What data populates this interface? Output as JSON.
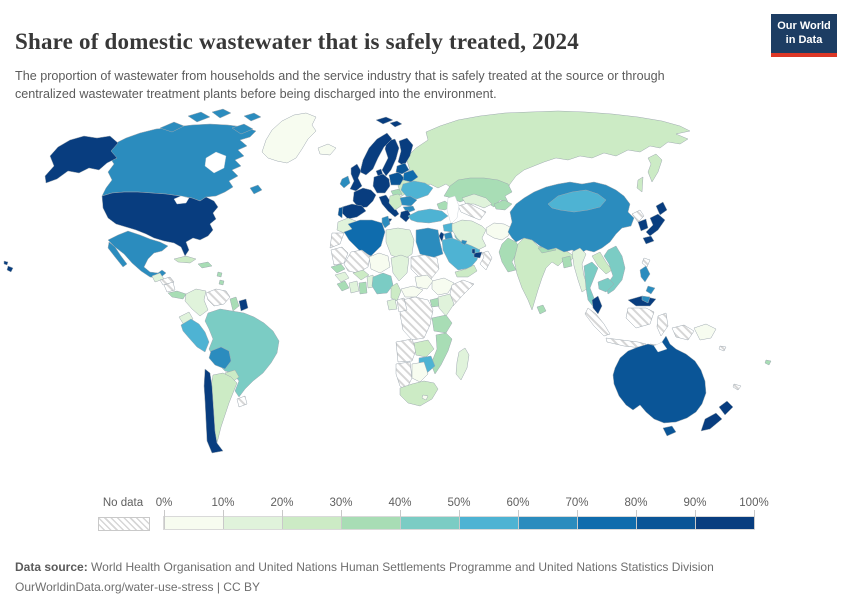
{
  "header": {
    "title": "Share of domestic wastewater that is safely treated, 2024",
    "subtitle": "The proportion of wastewater from households and the service industry that is safely treated at the source or through centralized wastewater treatment plants before being discharged into the environment.",
    "logo": {
      "line1": "Our World",
      "line2": "in Data",
      "bg_color": "#1d3d63",
      "accent_color": "#dc3726"
    }
  },
  "legend": {
    "no_data_label": "No data",
    "tick_labels": [
      "0%",
      "10%",
      "20%",
      "30%",
      "40%",
      "50%",
      "60%",
      "70%",
      "80%",
      "90%",
      "100%"
    ]
  },
  "footer": {
    "source_prefix": "Data source:",
    "source_text": " World Health Organisation and United Nations Human Settlements Programme and United Nations Statistics Division",
    "attribution": "OurWorldinData.org/water-use-stress | CC BY"
  },
  "chart_data": {
    "type": "choropleth",
    "title": "Share of domestic wastewater that is safely treated, 2024",
    "unit": "%",
    "bins": [
      "0-10%",
      "10-20%",
      "20-30%",
      "30-40%",
      "40-50%",
      "50-60%",
      "60-70%",
      "70-80%",
      "80-90%",
      "90-100%"
    ],
    "bin_colors": [
      "#f7fcf0",
      "#e0f3db",
      "#ccebc5",
      "#a8ddb5",
      "#7bccc4",
      "#4eb3d3",
      "#2b8cbe",
      "#0f6cad",
      "#0a5597",
      "#083d7f"
    ],
    "no_data": 0,
    "legend_note": "countries map to bin index 1-10; 0 = no data (hatched)",
    "countries": {
      "united-states": 10,
      "canada": 7,
      "greenland": 1,
      "mexico": 7,
      "guatemala": 2,
      "honduras": 0,
      "nicaragua": 0,
      "costa-rica-panama": 4,
      "cuba": 3,
      "dominican-republic": 4,
      "lesser-antilles": 4,
      "colombia": 2,
      "venezuela": 0,
      "guyana": 4,
      "suriname": 10,
      "ecuador": 2,
      "peru": 6,
      "brazil": 5,
      "bolivia": 7,
      "paraguay": 3,
      "chile": 10,
      "argentina": 3,
      "uruguay": 0,
      "iceland": 1,
      "united-kingdom": 10,
      "ireland": 7,
      "norway": 10,
      "sweden": 10,
      "finland": 10,
      "denmark": 10,
      "germany": 10,
      "france": 10,
      "spain": 10,
      "portugal": 9,
      "italy": 10,
      "poland": 9,
      "baltic-states": 9,
      "belarus": 8,
      "ukraine": 6,
      "romania": 7,
      "bulgaria": 7,
      "balkans": 3,
      "hungary": 4,
      "greece": 10,
      "russia": 3,
      "morocco": 2,
      "western-sahara": 0,
      "algeria": 8,
      "tunisia": 7,
      "libya": 2,
      "egypt": 7,
      "mauritania": 0,
      "mali": 0,
      "niger": 1,
      "chad": 2,
      "sudan": 0,
      "ethiopia": 1,
      "somalia": 0,
      "senegal": 4,
      "guinea": 2,
      "liberia": 4,
      "ivory-coast": 2,
      "ghana": 4,
      "burkina-faso": 3,
      "benin-togo": 2,
      "nigeria": 5,
      "cameroon": 3,
      "central-african-republic": 1,
      "south-sudan": 1,
      "gabon": 2,
      "congo": 0,
      "dr-congo": 0,
      "uganda": 4,
      "kenya": 2,
      "tanzania": 4,
      "angola": 0,
      "zambia": 3,
      "mozambique": 4,
      "zimbabwe": 6,
      "namibia": 0,
      "botswana": 1,
      "south-africa": 3,
      "lesotho": 1,
      "madagascar": 2,
      "turkey": 6,
      "caucasus": 4,
      "kazakhstan": 4,
      "uzbekistan": 2,
      "turkmenistan": 0,
      "kyrgyzstan-tajikistan": 4,
      "syria": 6,
      "iraq": 5,
      "iran": 2,
      "jordan": 7,
      "israel": 10,
      "saudi-arabia": 6,
      "yemen": 3,
      "oman": 0,
      "united-arab-emirates": 10,
      "qatar": 10,
      "kuwait": 7,
      "afghanistan": 1,
      "pakistan": 4,
      "india": 3,
      "nepal": 4,
      "bangladesh": 4,
      "sri-lanka": 4,
      "china": 7,
      "mongolia": 6,
      "north-korea": 0,
      "south-korea": 10,
      "japan": 10,
      "taiwan": 0,
      "myanmar": 2,
      "thailand": 5,
      "laos": 3,
      "vietnam": 5,
      "cambodia": 5,
      "malaysia": 10,
      "indonesia": 0,
      "philippines": 7,
      "papua-new-guinea": 1,
      "australia": 9,
      "new-zealand": 10,
      "fiji": 4,
      "solomon-islands": 0,
      "new-caledonia": 0
    }
  }
}
